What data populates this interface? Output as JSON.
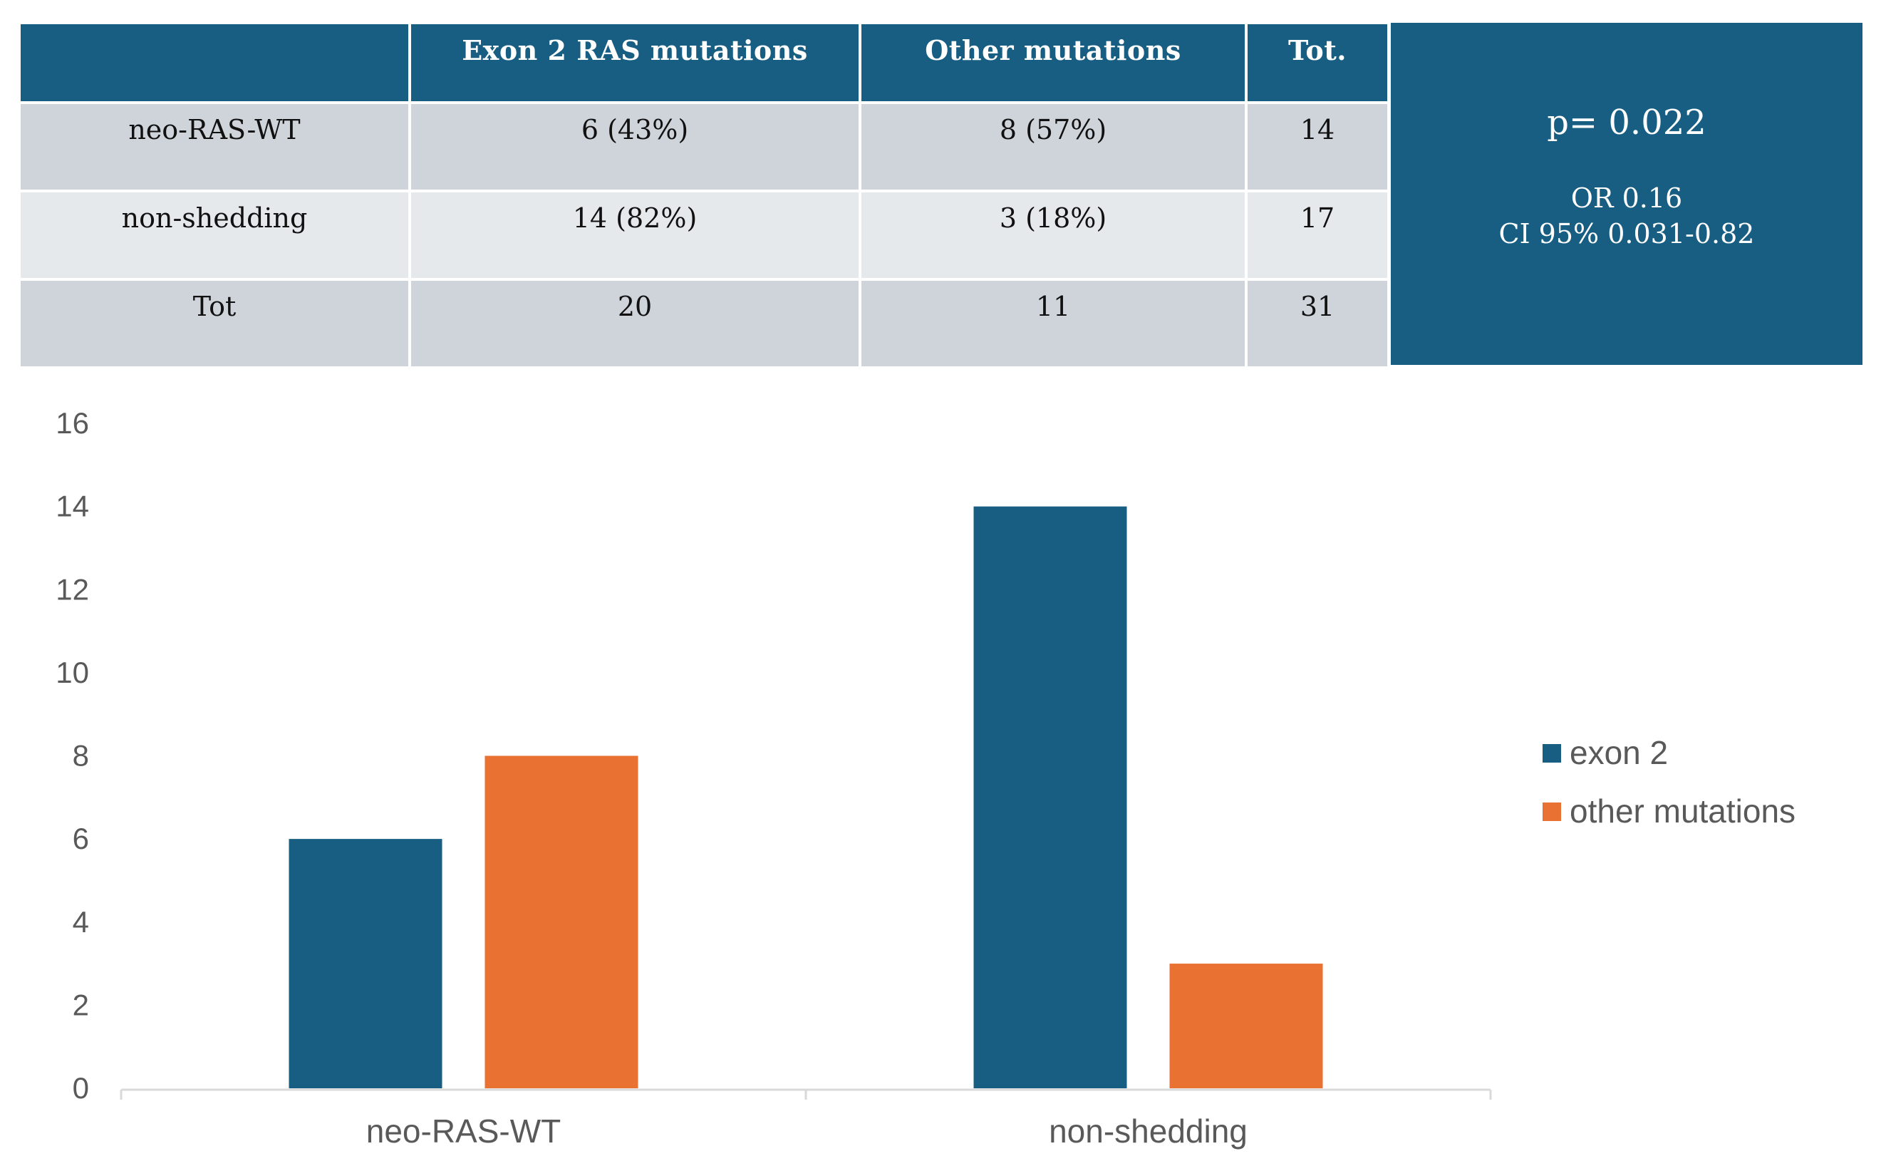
{
  "table": {
    "headers": [
      "",
      "Exon 2 RAS mutations",
      "Other mutations",
      "Tot."
    ],
    "rows": [
      [
        "neo-RAS-WT",
        "6 (43%)",
        "8 (57%)",
        "14"
      ],
      [
        "non-shedding",
        "14 (82%)",
        "3 (18%)",
        "17"
      ],
      [
        "Tot",
        "20",
        "11",
        "31"
      ]
    ],
    "stats": {
      "p_value": "p= 0.022",
      "odds_ratio": "OR 0.16",
      "confidence_interval": "CI 95% 0.031-0.82"
    }
  },
  "colors": {
    "header_bg": "#175e82",
    "exon2": "#175e82",
    "other": "#e97132",
    "row_dark": "#cfd4db",
    "row_light": "#e6e9ec"
  },
  "chart_data": {
    "type": "bar",
    "categories": [
      "neo-RAS-WT",
      "non-shedding"
    ],
    "series": [
      {
        "name": "exon 2",
        "values": [
          6,
          14
        ]
      },
      {
        "name": "other mutations",
        "values": [
          8,
          3
        ]
      }
    ],
    "yticks": [
      "0",
      "2",
      "4",
      "6",
      "8",
      "10",
      "12",
      "14",
      "16"
    ],
    "ylim": [
      0,
      16
    ],
    "title": "",
    "xlabel": "",
    "ylabel": "",
    "legend_position": "right"
  }
}
